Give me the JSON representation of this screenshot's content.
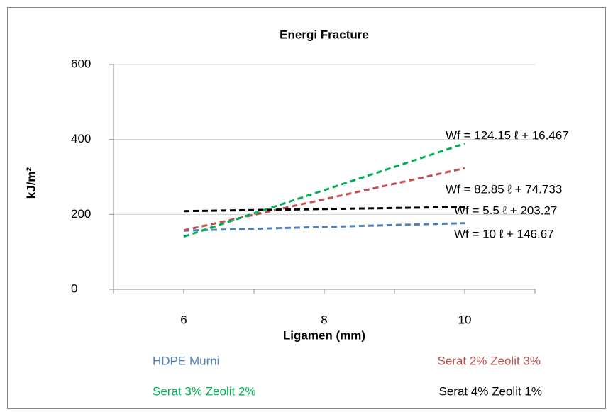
{
  "chart_data": {
    "type": "line",
    "title": "Energi Fracture",
    "x_label": "Ligamen (mm)",
    "y_label": "kJ/m²",
    "x": [
      6,
      8,
      10
    ],
    "series": [
      {
        "name": "HDPE Murni",
        "color": "#4f81bd",
        "values": [
          156.67,
          166.67,
          176.67
        ]
      },
      {
        "name": "Serat 2% Zeolit 3%",
        "color": "#c0504d",
        "values": [
          157.58,
          240.43,
          323.28
        ]
      },
      {
        "name": "Serat 3% Zeolit 2%",
        "color": "#00b050",
        "values": [
          140.62,
          264.77,
          388.92
        ]
      },
      {
        "name": "Serat 4% Zeolit 1%",
        "color": "#000000",
        "values": [
          208.77,
          214.27,
          219.77
        ]
      }
    ],
    "annotations": [
      "Wf = 10 ℓ + 146.67",
      "Wf = 82.85 ℓ + 74.733",
      "Wf = 124.15 ℓ + 16.467",
      "Wf = 5.5 ℓ + 203.27"
    ],
    "xlim": [
      5,
      11
    ],
    "xticks": [
      6,
      8,
      10
    ],
    "ylim": [
      0,
      600
    ],
    "yticks": [
      0,
      200,
      400,
      600
    ],
    "grid": true,
    "line_style": "dashed",
    "legend": "bottom"
  }
}
